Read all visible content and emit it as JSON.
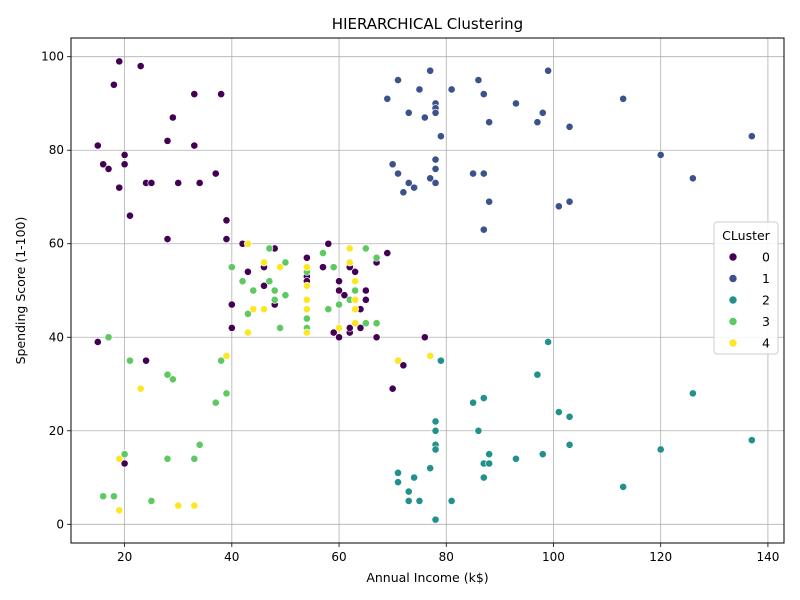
{
  "chart_data": {
    "type": "scatter",
    "title": "HIERARCHICAL Clustering",
    "xlabel": "Annual Income (k$)",
    "ylabel": "Spending Score (1-100)",
    "xlim": [
      10,
      143
    ],
    "ylim": [
      -4,
      104
    ],
    "xticks": [
      20,
      40,
      60,
      80,
      100,
      120,
      140
    ],
    "yticks": [
      0,
      20,
      40,
      60,
      80,
      100
    ],
    "grid": true,
    "legend": {
      "title": "CLuster",
      "placement": "right"
    },
    "series": [
      {
        "name": "0",
        "color": "#440154",
        "points": [
          [
            15,
            39
          ],
          [
            15,
            81
          ],
          [
            16,
            77
          ],
          [
            17,
            76
          ],
          [
            18,
            94
          ],
          [
            19,
            99
          ],
          [
            19,
            72
          ],
          [
            20,
            79
          ],
          [
            20,
            77
          ],
          [
            20,
            13
          ],
          [
            21,
            66
          ],
          [
            23,
            98
          ],
          [
            24,
            35
          ],
          [
            24,
            73
          ],
          [
            25,
            73
          ],
          [
            28,
            82
          ],
          [
            28,
            61
          ],
          [
            29,
            87
          ],
          [
            30,
            73
          ],
          [
            33,
            92
          ],
          [
            33,
            81
          ],
          [
            34,
            73
          ],
          [
            37,
            75
          ],
          [
            38,
            92
          ],
          [
            39,
            65
          ],
          [
            39,
            61
          ],
          [
            40,
            47
          ],
          [
            40,
            42
          ],
          [
            42,
            60
          ],
          [
            43,
            54
          ],
          [
            46,
            51
          ],
          [
            46,
            55
          ],
          [
            48,
            59
          ],
          [
            48,
            47
          ],
          [
            54,
            57
          ],
          [
            54,
            53
          ],
          [
            54,
            52
          ],
          [
            57,
            55
          ],
          [
            58,
            60
          ],
          [
            59,
            41
          ],
          [
            60,
            52
          ],
          [
            60,
            50
          ],
          [
            60,
            40
          ],
          [
            61,
            49
          ],
          [
            62,
            55
          ],
          [
            62,
            41
          ],
          [
            62,
            42
          ],
          [
            63,
            54
          ],
          [
            64,
            46
          ],
          [
            64,
            42
          ],
          [
            65,
            50
          ],
          [
            65,
            48
          ],
          [
            67,
            56
          ],
          [
            67,
            40
          ],
          [
            69,
            58
          ],
          [
            70,
            29
          ],
          [
            71,
            35
          ],
          [
            72,
            34
          ],
          [
            76,
            40
          ]
        ]
      },
      {
        "name": "1",
        "color": "#3b528b",
        "points": [
          [
            69,
            91
          ],
          [
            70,
            77
          ],
          [
            71,
            95
          ],
          [
            71,
            75
          ],
          [
            72,
            71
          ],
          [
            73,
            88
          ],
          [
            73,
            73
          ],
          [
            74,
            72
          ],
          [
            75,
            93
          ],
          [
            76,
            87
          ],
          [
            77,
            97
          ],
          [
            77,
            74
          ],
          [
            78,
            90
          ],
          [
            78,
            89
          ],
          [
            78,
            88
          ],
          [
            78,
            78
          ],
          [
            78,
            76
          ],
          [
            78,
            73
          ],
          [
            79,
            83
          ],
          [
            81,
            93
          ],
          [
            85,
            75
          ],
          [
            86,
            95
          ],
          [
            87,
            92
          ],
          [
            87,
            75
          ],
          [
            87,
            63
          ],
          [
            88,
            86
          ],
          [
            88,
            69
          ],
          [
            93,
            90
          ],
          [
            97,
            86
          ],
          [
            98,
            88
          ],
          [
            99,
            97
          ],
          [
            101,
            68
          ],
          [
            103,
            85
          ],
          [
            103,
            69
          ],
          [
            113,
            91
          ],
          [
            120,
            79
          ],
          [
            126,
            74
          ],
          [
            137,
            83
          ]
        ]
      },
      {
        "name": "2",
        "color": "#21918c",
        "points": [
          [
            71,
            11
          ],
          [
            71,
            9
          ],
          [
            73,
            5
          ],
          [
            73,
            7
          ],
          [
            74,
            10
          ],
          [
            75,
            5
          ],
          [
            77,
            12
          ],
          [
            78,
            22
          ],
          [
            78,
            20
          ],
          [
            78,
            17
          ],
          [
            78,
            16
          ],
          [
            78,
            1
          ],
          [
            79,
            35
          ],
          [
            81,
            5
          ],
          [
            85,
            26
          ],
          [
            86,
            20
          ],
          [
            87,
            27
          ],
          [
            87,
            13
          ],
          [
            87,
            10
          ],
          [
            88,
            15
          ],
          [
            88,
            13
          ],
          [
            93,
            14
          ],
          [
            97,
            32
          ],
          [
            98,
            15
          ],
          [
            99,
            39
          ],
          [
            101,
            24
          ],
          [
            103,
            23
          ],
          [
            103,
            17
          ],
          [
            113,
            8
          ],
          [
            120,
            16
          ],
          [
            126,
            28
          ],
          [
            137,
            18
          ]
        ]
      },
      {
        "name": "3",
        "color": "#5ec962",
        "points": [
          [
            16,
            6
          ],
          [
            17,
            40
          ],
          [
            18,
            6
          ],
          [
            20,
            15
          ],
          [
            21,
            35
          ],
          [
            25,
            5
          ],
          [
            28,
            32
          ],
          [
            28,
            14
          ],
          [
            29,
            31
          ],
          [
            33,
            14
          ],
          [
            34,
            17
          ],
          [
            37,
            26
          ],
          [
            38,
            35
          ],
          [
            39,
            28
          ],
          [
            40,
            55
          ],
          [
            42,
            52
          ],
          [
            43,
            45
          ],
          [
            44,
            50
          ],
          [
            47,
            59
          ],
          [
            47,
            52
          ],
          [
            48,
            50
          ],
          [
            48,
            48
          ],
          [
            49,
            42
          ],
          [
            50,
            56
          ],
          [
            50,
            49
          ],
          [
            54,
            54
          ],
          [
            54,
            44
          ],
          [
            54,
            42
          ],
          [
            58,
            46
          ],
          [
            59,
            55
          ],
          [
            57,
            58
          ],
          [
            60,
            47
          ],
          [
            62,
            48
          ],
          [
            63,
            50
          ],
          [
            63,
            48
          ],
          [
            65,
            59
          ],
          [
            65,
            43
          ],
          [
            67,
            57
          ],
          [
            67,
            43
          ]
        ]
      },
      {
        "name": "4",
        "color": "#fde725",
        "points": [
          [
            19,
            14
          ],
          [
            19,
            3
          ],
          [
            23,
            29
          ],
          [
            30,
            4
          ],
          [
            33,
            4
          ],
          [
            39,
            36
          ],
          [
            43,
            60
          ],
          [
            43,
            41
          ],
          [
            44,
            46
          ],
          [
            46,
            56
          ],
          [
            46,
            46
          ],
          [
            49,
            55
          ],
          [
            54,
            55
          ],
          [
            54,
            51
          ],
          [
            54,
            48
          ],
          [
            54,
            46
          ],
          [
            54,
            41
          ],
          [
            60,
            42
          ],
          [
            62,
            59
          ],
          [
            62,
            56
          ],
          [
            63,
            52
          ],
          [
            63,
            48
          ],
          [
            63,
            46
          ],
          [
            63,
            43
          ],
          [
            71,
            35
          ],
          [
            77,
            36
          ]
        ]
      }
    ]
  }
}
